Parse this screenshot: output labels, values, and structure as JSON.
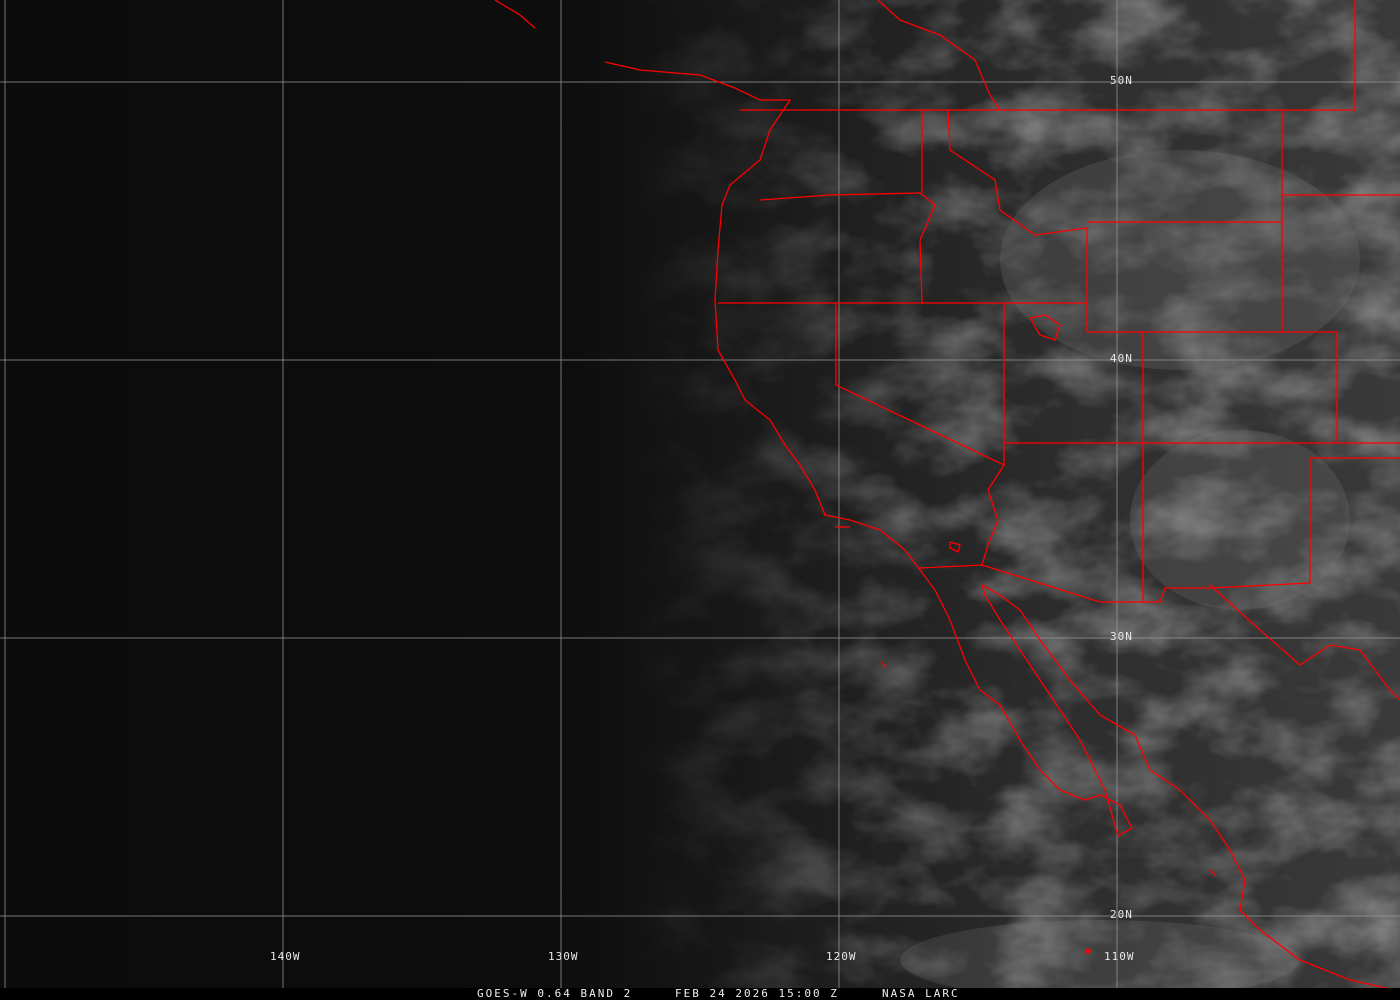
{
  "imagery": {
    "satellite": "GOES-W",
    "caption_product": "GOES-W 0.64 BAND 2",
    "caption_time": "FEB 24 2026 15:00 Z",
    "caption_source": "NASA LARC"
  },
  "grid": {
    "longitude_labels": [
      "140W",
      "130W",
      "120W",
      "110W"
    ],
    "latitude_labels": [
      "50N",
      "40N",
      "30N",
      "20N"
    ],
    "grid_color": "#9a9a9a"
  },
  "colors": {
    "boundary_color": "#ff0000",
    "ocean_dark": "#0b0b0b",
    "land_gray": "#3c3c3c",
    "cloud_light": "#9a9a9a"
  }
}
